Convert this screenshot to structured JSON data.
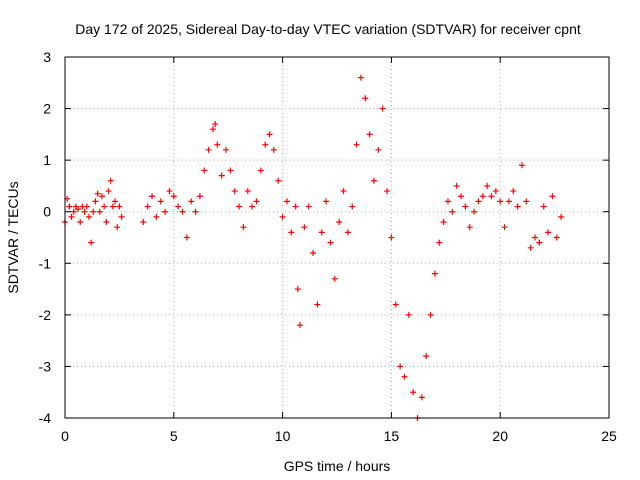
{
  "chart_data": {
    "type": "scatter",
    "title": "Day 172 of 2025, Sidereal Day-to-day VTEC variation (SDTVAR) for receiver cpnt",
    "xlabel": "GPS time / hours",
    "ylabel": "SDTVAR / TECUs",
    "xlim": [
      0,
      25
    ],
    "ylim": [
      -4,
      3
    ],
    "xticks": [
      0,
      5,
      10,
      15,
      20,
      25
    ],
    "yticks": [
      -4,
      -3,
      -2,
      -1,
      0,
      1,
      2,
      3
    ],
    "grid": true,
    "marker": "+",
    "color": "#ff0000",
    "series": [
      {
        "name": "cpnt",
        "x": [
          0.0,
          0.1,
          0.2,
          0.3,
          0.4,
          0.5,
          0.6,
          0.7,
          0.8,
          0.9,
          1.0,
          1.1,
          1.2,
          1.3,
          1.4,
          1.5,
          1.6,
          1.7,
          1.8,
          1.9,
          2.0,
          2.1,
          2.2,
          2.3,
          2.4,
          2.5,
          2.6,
          3.6,
          3.8,
          4.0,
          4.2,
          4.4,
          4.6,
          4.8,
          5.0,
          5.2,
          5.4,
          5.6,
          5.8,
          6.0,
          6.2,
          6.4,
          6.6,
          6.8,
          6.9,
          7.0,
          7.2,
          7.4,
          7.6,
          7.8,
          8.0,
          8.2,
          8.4,
          8.6,
          8.8,
          9.0,
          9.2,
          9.4,
          9.6,
          9.8,
          10.0,
          10.2,
          10.4,
          10.6,
          10.7,
          10.8,
          11.0,
          11.2,
          11.4,
          11.6,
          11.8,
          12.0,
          12.2,
          12.4,
          12.6,
          12.8,
          13.0,
          13.2,
          13.4,
          13.6,
          13.8,
          14.0,
          14.2,
          14.4,
          14.6,
          14.8,
          15.0,
          15.2,
          15.4,
          15.6,
          15.8,
          16.0,
          16.2,
          16.4,
          16.6,
          16.8,
          17.0,
          17.2,
          17.4,
          17.6,
          17.8,
          18.0,
          18.2,
          18.4,
          18.6,
          18.8,
          19.0,
          19.2,
          19.4,
          19.6,
          19.8,
          20.0,
          20.2,
          20.4,
          20.6,
          20.8,
          21.0,
          21.2,
          21.4,
          21.6,
          21.8,
          22.0,
          22.2,
          22.4,
          22.6,
          22.8
        ],
        "y": [
          -0.2,
          0.25,
          0.1,
          -0.1,
          0.0,
          0.1,
          0.05,
          -0.2,
          0.1,
          0.0,
          0.1,
          -0.1,
          -0.6,
          0.0,
          0.2,
          0.35,
          0.0,
          0.3,
          0.1,
          -0.2,
          0.4,
          0.6,
          0.1,
          0.2,
          -0.3,
          0.1,
          -0.1,
          -0.2,
          0.1,
          0.3,
          -0.1,
          0.2,
          0.0,
          0.4,
          0.3,
          0.1,
          0.0,
          -0.5,
          0.2,
          0.0,
          0.3,
          0.8,
          1.2,
          1.6,
          1.7,
          1.3,
          0.7,
          1.2,
          0.8,
          0.4,
          0.1,
          -0.3,
          0.4,
          0.1,
          0.2,
          0.8,
          1.3,
          1.5,
          1.2,
          0.6,
          -0.1,
          0.2,
          -0.4,
          0.1,
          -1.5,
          -2.2,
          -0.3,
          0.1,
          -0.8,
          -1.8,
          -0.4,
          0.2,
          -0.6,
          -1.3,
          -0.2,
          0.4,
          -0.4,
          0.1,
          1.3,
          2.6,
          2.2,
          1.5,
          0.6,
          1.2,
          2.0,
          0.4,
          -0.5,
          -1.8,
          -3.0,
          -3.2,
          -2.0,
          -3.5,
          -4.0,
          -3.6,
          -2.8,
          -2.0,
          -1.2,
          -0.6,
          -0.2,
          0.2,
          0.0,
          0.5,
          0.3,
          0.1,
          -0.3,
          0.0,
          0.2,
          0.3,
          0.5,
          0.3,
          0.4,
          0.2,
          -0.3,
          0.2,
          0.4,
          0.1,
          0.9,
          0.2,
          -0.7,
          -0.5,
          -0.6,
          0.1,
          -0.4,
          0.3,
          -0.5,
          -0.1
        ]
      }
    ]
  }
}
